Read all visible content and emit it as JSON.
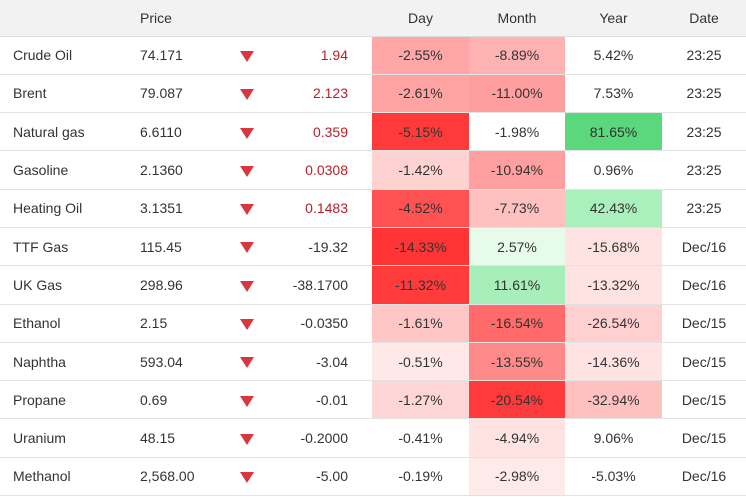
{
  "header": {
    "name": "",
    "price": "Price",
    "arrow": "",
    "change": "",
    "day": "Day",
    "month": "Month",
    "year": "Year",
    "date": "Date"
  },
  "colors": {
    "neg_strong": "#ff3b3b",
    "neg_medium": "#ff7777",
    "neg_light": "#ffa8a8",
    "neg_faint": "#ffe3e3",
    "pos_strong": "#5ad87b",
    "pos_light": "#aaf0bd",
    "pos_faint": "#e6fbea",
    "arrow_down": "#d9363e",
    "header_bg": "#f2f2f2"
  },
  "rows": [
    {
      "name": "Crude Oil",
      "price": "74.171",
      "direction": "down",
      "change": "1.94",
      "change_color": "down",
      "day": "-2.55%",
      "day_bg": "#ffa6a6",
      "month": "-8.89%",
      "month_bg": "#ffb2b2",
      "year": "5.42%",
      "year_bg": "#ffffff",
      "date": "23:25"
    },
    {
      "name": "Brent",
      "price": "79.087",
      "direction": "down",
      "change": "2.123",
      "change_color": "down",
      "day": "-2.61%",
      "day_bg": "#ffa3a3",
      "month": "-11.00%",
      "month_bg": "#ff9e9e",
      "year": "7.53%",
      "year_bg": "#ffffff",
      "date": "23:25"
    },
    {
      "name": "Natural gas",
      "price": "6.6110",
      "direction": "down",
      "change": "0.359",
      "change_color": "down",
      "day": "-5.15%",
      "day_bg": "#ff3a3a",
      "month": "-1.98%",
      "month_bg": "#ffffff",
      "year": "81.65%",
      "year_bg": "#5ad87b",
      "date": "23:25"
    },
    {
      "name": "Gasoline",
      "price": "2.1360",
      "direction": "down",
      "change": "0.0308",
      "change_color": "down",
      "day": "-1.42%",
      "day_bg": "#ffd2d2",
      "month": "-10.94%",
      "month_bg": "#ff9f9f",
      "year": "0.96%",
      "year_bg": "#ffffff",
      "date": "23:25"
    },
    {
      "name": "Heating Oil",
      "price": "3.1351",
      "direction": "down",
      "change": "0.1483",
      "change_color": "down",
      "day": "-4.52%",
      "day_bg": "#ff5252",
      "month": "-7.73%",
      "month_bg": "#ffc0c0",
      "year": "42.43%",
      "year_bg": "#aaf0bd",
      "date": "23:25"
    },
    {
      "name": "TTF Gas",
      "price": "115.45",
      "direction": "down",
      "change": "-19.32",
      "change_color": "up",
      "day": "-14.33%",
      "day_bg": "#ff3434",
      "month": "2.57%",
      "month_bg": "#e6fbea",
      "year": "-15.68%",
      "year_bg": "#ffe3e3",
      "date": "Dec/16"
    },
    {
      "name": "UK Gas",
      "price": "298.96",
      "direction": "down",
      "change": "-38.1700",
      "change_color": "up",
      "day": "-11.32%",
      "day_bg": "#ff3b3b",
      "month": "11.61%",
      "month_bg": "#a8eebb",
      "year": "-13.32%",
      "year_bg": "#ffe3e3",
      "date": "Dec/16"
    },
    {
      "name": "Ethanol",
      "price": "2.15",
      "direction": "down",
      "change": "-0.0350",
      "change_color": "up",
      "day": "-1.61%",
      "day_bg": "#ffc6c6",
      "month": "-16.54%",
      "month_bg": "#ff6a6a",
      "year": "-26.54%",
      "year_bg": "#ffd0d0",
      "date": "Dec/15"
    },
    {
      "name": "Naphtha",
      "price": "593.04",
      "direction": "down",
      "change": "-3.04",
      "change_color": "up",
      "day": "-0.51%",
      "day_bg": "#ffe8e8",
      "month": "-13.55%",
      "month_bg": "#ff8a8a",
      "year": "-14.36%",
      "year_bg": "#ffe3e3",
      "date": "Dec/15"
    },
    {
      "name": "Propane",
      "price": "0.69",
      "direction": "down",
      "change": "-0.01",
      "change_color": "up",
      "day": "-1.27%",
      "day_bg": "#ffd6d6",
      "month": "-20.54%",
      "month_bg": "#ff3a3a",
      "year": "-32.94%",
      "year_bg": "#ffc0c0",
      "date": "Dec/15"
    },
    {
      "name": "Uranium",
      "price": "48.15",
      "direction": "down",
      "change": "-0.2000",
      "change_color": "up",
      "day": "-0.41%",
      "day_bg": "#ffffff",
      "month": "-4.94%",
      "month_bg": "#ffe3e3",
      "year": "9.06%",
      "year_bg": "#ffffff",
      "date": "Dec/15"
    },
    {
      "name": "Methanol",
      "price": "2,568.00",
      "direction": "down",
      "change": "-5.00",
      "change_color": "up",
      "day": "-0.19%",
      "day_bg": "#ffffff",
      "month": "-2.98%",
      "month_bg": "#ffeaea",
      "year": "-5.03%",
      "year_bg": "#ffffff",
      "date": "Dec/16"
    }
  ]
}
